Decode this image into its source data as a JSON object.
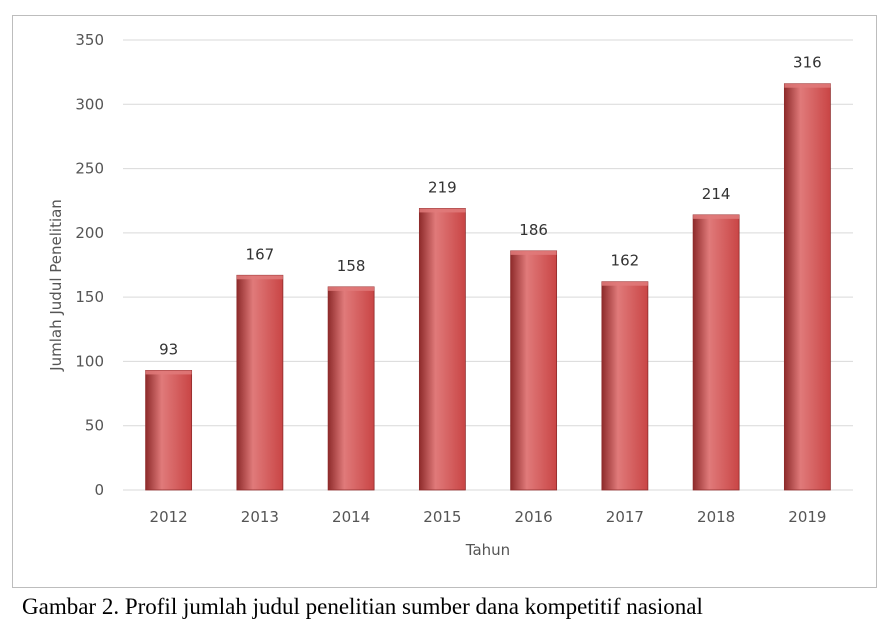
{
  "chart_data": {
    "type": "bar",
    "categories": [
      "2012",
      "2013",
      "2014",
      "2015",
      "2016",
      "2017",
      "2018",
      "2019"
    ],
    "values": [
      93,
      167,
      158,
      219,
      186,
      162,
      214,
      316
    ],
    "xlabel": "Tahun",
    "ylabel": "Jumlah Judul Penelitian",
    "ylim": [
      0,
      350
    ],
    "yticks": [
      0,
      50,
      100,
      150,
      200,
      250,
      300,
      350
    ],
    "grid": true,
    "legend": "none",
    "data_labels": true,
    "bar_color": "#c94545",
    "bar_highlight": "#e07a7a",
    "bar_edge": "#8e2b2b",
    "grid_color": "#d9d9d9"
  },
  "caption": "Gambar 2. Profil jumlah judul penelitian sumber dana kompetitif nasional"
}
